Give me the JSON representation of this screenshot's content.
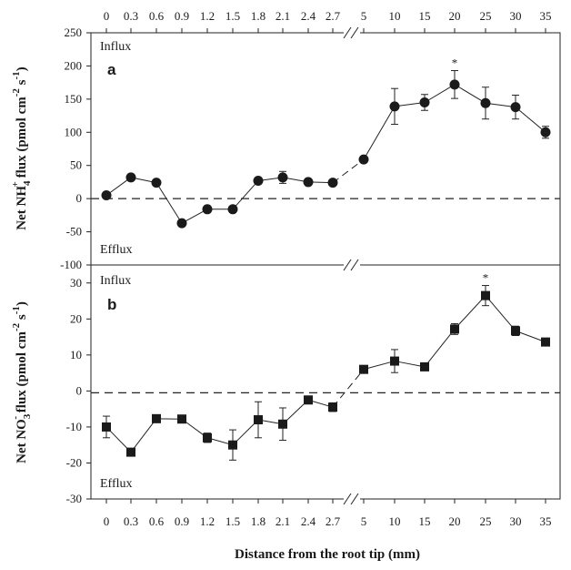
{
  "chart_data": [
    {
      "type": "scatter",
      "panel_label": "a",
      "ylabel": "Net NH4+ flux (pmol cm-2 s-1)",
      "ylabel_parts": {
        "pre": "Net NH",
        "sub": "4",
        "sup": "+",
        "post": " flux (pmol cm",
        "sup2": "-2",
        "post2": " s",
        "sup3": "-1",
        "close": ")"
      },
      "ylim": [
        -100,
        250
      ],
      "yticks": [
        -100,
        -50,
        0,
        50,
        100,
        150,
        200,
        250
      ],
      "tick_labels_x": [
        "0",
        "0.3",
        "0.6",
        "0.9",
        "1.2",
        "1.5",
        "1.8",
        "2.1",
        "2.4",
        "2.7",
        "5",
        "10",
        "15",
        "20",
        "25",
        "30",
        "35"
      ],
      "marker": "circle",
      "x": [
        0,
        0.3,
        0.6,
        0.9,
        1.2,
        1.5,
        1.8,
        2.1,
        2.4,
        2.7,
        5,
        10,
        15,
        20,
        25,
        30,
        35
      ],
      "y": [
        5,
        32,
        24,
        -37,
        -16,
        -16,
        27,
        32,
        25,
        24,
        59,
        139,
        145,
        172,
        144,
        138,
        100
      ],
      "err": [
        3,
        4,
        4,
        3,
        3,
        3,
        4,
        9,
        4,
        4,
        4,
        27,
        12,
        21,
        24,
        18,
        9
      ],
      "annotations": [
        {
          "x": 20,
          "text": "*"
        }
      ],
      "influx_label": "Influx",
      "efflux_label": "Efflux",
      "reference_line": 0,
      "axis_break_between": [
        "2.7",
        "5"
      ]
    },
    {
      "type": "scatter",
      "panel_label": "b",
      "ylabel": "Net NO3- flux (pmol cm-2 s-1)",
      "ylabel_parts": {
        "pre": "Net NO",
        "sub": "3",
        "sup": "-",
        "post": " flux (pmol cm",
        "sup2": "-2",
        "post2": " s",
        "sup3": "-1",
        "close": ")"
      },
      "ylim": [
        -30,
        35
      ],
      "yticks": [
        -30,
        -20,
        -10,
        0,
        10,
        20,
        30
      ],
      "tick_labels_x": [
        "0",
        "0.3",
        "0.6",
        "0.9",
        "1.2",
        "1.5",
        "1.8",
        "2.1",
        "2.4",
        "2.7",
        "5",
        "10",
        "15",
        "20",
        "25",
        "30",
        "35"
      ],
      "marker": "square",
      "x": [
        0,
        0.3,
        0.6,
        0.9,
        1.2,
        1.5,
        1.8,
        2.1,
        2.4,
        2.7,
        5,
        10,
        15,
        20,
        25,
        30,
        35
      ],
      "y": [
        -10,
        -17,
        -7.7,
        -7.8,
        -13,
        -15,
        -8,
        -9.2,
        -2.5,
        -4.5,
        6,
        8.3,
        6.7,
        17.2,
        26.5,
        16.7,
        13.6
      ],
      "err": [
        3,
        1,
        0.5,
        0.5,
        1.3,
        4.2,
        5,
        4.5,
        0.5,
        1.2,
        0.6,
        3.2,
        0.6,
        1.5,
        2.8,
        1.3,
        0.6
      ],
      "annotations": [
        {
          "x": 25,
          "text": "*"
        }
      ],
      "influx_label": "Influx",
      "efflux_label": "Efflux",
      "reference_line": -0.5,
      "axis_break_between": [
        "2.7",
        "5"
      ]
    }
  ],
  "xlabel": "Distance from the root tip (mm)"
}
